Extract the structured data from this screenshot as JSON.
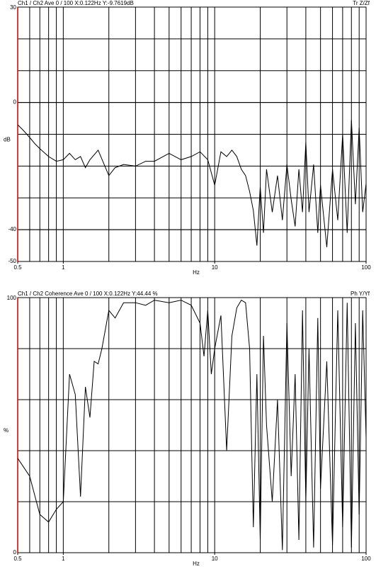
{
  "chart_data": [
    {
      "type": "line",
      "xscale": "log",
      "grid": true,
      "color": "#000000",
      "axis_color": "#cc0000",
      "header_left": "Ch1 / Ch2  Ave 0 / 100  X:0.122Hz  Y:-9.7619dB",
      "header_right": "Tr Z/Zf",
      "y_label": "dB",
      "x_label": "Hz",
      "xlim": [
        0.5,
        100
      ],
      "xticks": [
        0.5,
        1,
        10,
        100
      ],
      "xgrid": [
        0.6,
        0.7,
        0.8,
        0.9,
        1,
        2,
        3,
        4,
        5,
        6,
        7,
        8,
        9,
        10,
        20,
        30,
        40,
        50,
        60,
        70,
        80,
        90
      ],
      "ylim": [
        -50,
        30
      ],
      "yticks": [
        30,
        0,
        -40,
        -50
      ],
      "ygrid": [
        -40,
        -30,
        -20,
        -10,
        0,
        10,
        20
      ],
      "x": [
        0.5,
        0.55,
        0.6,
        0.65,
        0.7,
        0.8,
        0.9,
        1,
        1.1,
        1.2,
        1.3,
        1.4,
        1.5,
        1.7,
        2,
        2.2,
        2.5,
        3,
        3.5,
        4,
        5,
        6,
        7,
        8,
        9,
        10,
        11,
        12,
        13,
        14,
        15,
        16,
        17,
        18,
        19,
        20,
        21,
        22,
        24,
        26,
        28,
        30,
        32,
        34,
        36,
        38,
        40,
        42,
        45,
        48,
        50,
        55,
        60,
        65,
        70,
        75,
        80,
        85,
        90,
        95,
        100
      ],
      "values": [
        -7,
        -9,
        -11,
        -13,
        -14.5,
        -17,
        -18.5,
        -18,
        -16,
        -18,
        -17,
        -20.5,
        -18,
        -15,
        -23,
        -20.5,
        -19.5,
        -20,
        -18.5,
        -18.5,
        -16,
        -18,
        -17,
        -15.5,
        -18,
        -26,
        -15.5,
        -17,
        -15,
        -17,
        -21,
        -23,
        -28,
        -34,
        -45,
        -26.5,
        -41,
        -21,
        -34.5,
        -23,
        -37,
        -19.5,
        -30.5,
        -39,
        -21,
        -34.5,
        -12.5,
        -34.5,
        -19.5,
        -41,
        -26,
        -45.5,
        -21,
        -37,
        -10,
        -41,
        -5.5,
        -32,
        -8,
        -34.5,
        -25.5
      ]
    },
    {
      "type": "line",
      "xscale": "log",
      "grid": true,
      "color": "#000000",
      "axis_color": "#cc0000",
      "header_left": "Ch1 / Ch2  Coherence Ave 0 / 100  X:0.122Hz  Y:44.44 %",
      "header_right": "Ph Y/Yf",
      "y_label": "%",
      "x_label": "Hz",
      "xlim": [
        0.5,
        100
      ],
      "xticks": [
        0.5,
        1,
        10,
        100
      ],
      "xgrid": [
        0.6,
        0.7,
        0.8,
        0.9,
        1,
        2,
        3,
        4,
        5,
        6,
        7,
        8,
        9,
        10,
        20,
        30,
        40,
        50,
        60,
        70,
        80,
        90
      ],
      "ylim": [
        0,
        100
      ],
      "yticks": [
        100,
        0
      ],
      "ygrid": [
        20,
        40,
        60,
        80
      ],
      "x": [
        0.5,
        0.6,
        0.7,
        0.8,
        0.9,
        1,
        1.1,
        1.2,
        1.3,
        1.4,
        1.5,
        1.6,
        1.7,
        1.8,
        2,
        2.2,
        2.5,
        3,
        3.5,
        4,
        5,
        6,
        7,
        8,
        8.5,
        9,
        9.5,
        10,
        11,
        12,
        13,
        14,
        15,
        16,
        17,
        18,
        19,
        20,
        21,
        22,
        24,
        26,
        28,
        30,
        32,
        34,
        36,
        38,
        40,
        42,
        45,
        48,
        50,
        55,
        60,
        65,
        70,
        75,
        80,
        85,
        90,
        95,
        100
      ],
      "values": [
        37,
        30,
        15,
        12,
        17,
        20,
        70,
        62,
        22,
        65,
        53,
        75,
        74,
        80,
        95,
        92,
        98,
        98,
        97,
        99,
        98,
        99,
        97,
        90,
        77,
        95,
        70,
        80,
        93,
        40,
        85,
        96,
        99,
        98,
        80,
        10,
        70,
        5,
        85,
        50,
        20,
        60,
        1,
        90,
        30,
        70,
        5,
        95,
        20,
        80,
        2,
        92,
        25,
        75,
        3,
        95,
        10,
        98,
        2,
        90,
        15,
        95,
        45
      ]
    }
  ]
}
